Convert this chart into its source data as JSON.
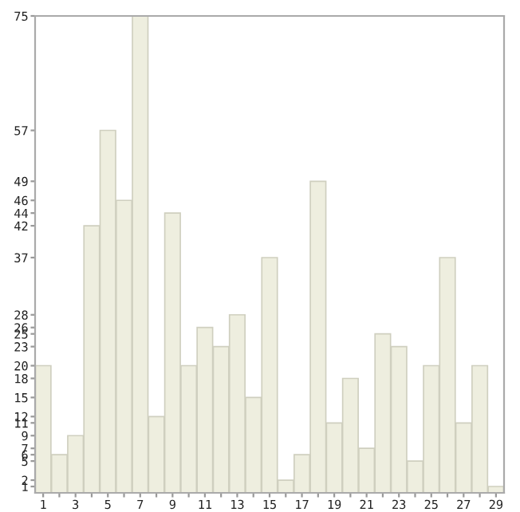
{
  "chart_data": {
    "type": "bar",
    "categories": [
      "1",
      null,
      "3",
      null,
      "5",
      null,
      "7",
      null,
      "9",
      null,
      "11",
      null,
      "13",
      null,
      "15",
      null,
      "17",
      null,
      "19",
      null,
      "21",
      null,
      "23",
      null,
      "25",
      null,
      "27",
      null,
      "29"
    ],
    "values": [
      20,
      6,
      9,
      42,
      57,
      46,
      75,
      12,
      44,
      20,
      26,
      23,
      28,
      15,
      37,
      2,
      6,
      49,
      11,
      18,
      7,
      25,
      23,
      5,
      20,
      37,
      11,
      20,
      1
    ],
    "color": "#eeeedf",
    "ylim": [
      0,
      75
    ],
    "yticks": [
      1,
      2,
      5,
      6,
      7,
      9,
      11,
      12,
      15,
      18,
      20,
      23,
      25,
      26,
      28,
      37,
      42,
      44,
      46,
      49,
      57,
      75
    ],
    "grid": false,
    "legend": false
  }
}
